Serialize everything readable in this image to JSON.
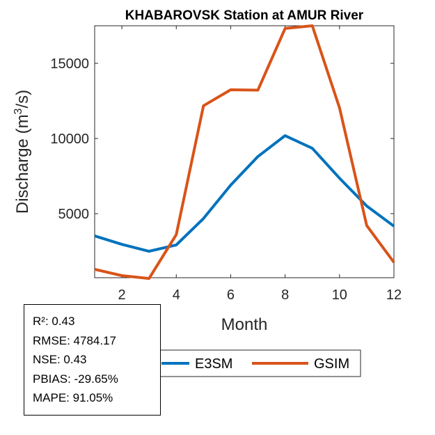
{
  "chart_data": {
    "type": "line",
    "title": "KHABAROVSK  Station at  AMUR  River",
    "xlabel": "Month",
    "ylabel": "Discharge (m³/s)",
    "ylabel_parts": {
      "pre": "Discharge (m",
      "sup": "3",
      "post": "/s)"
    },
    "xlim": [
      1,
      12
    ],
    "ylim": [
      741,
      17500
    ],
    "xticks": [
      2,
      4,
      6,
      8,
      10,
      12
    ],
    "yticks": [
      5000,
      10000,
      15000
    ],
    "x": [
      1,
      2,
      3,
      4,
      5,
      6,
      7,
      8,
      9,
      10,
      11,
      12
    ],
    "series": [
      {
        "name": "E3SM",
        "color": "#0072BD",
        "values": [
          3520,
          2960,
          2500,
          2920,
          4680,
          6900,
          8800,
          10190,
          9350,
          7360,
          5510,
          4170
        ]
      },
      {
        "name": "GSIM",
        "color": "#D95319",
        "values": [
          1300,
          880,
          690,
          3610,
          12180,
          13240,
          13220,
          17320,
          17500,
          12040,
          4210,
          1760
        ]
      }
    ],
    "legend": [
      "E3SM",
      "GSIM"
    ],
    "legend_placement": "bottom-outside",
    "grid": false
  },
  "stats": [
    "R²: 0.43",
    "RMSE: 4784.17",
    "NSE: 0.43",
    "PBIAS: -29.65%",
    "MAPE: 91.05%"
  ]
}
